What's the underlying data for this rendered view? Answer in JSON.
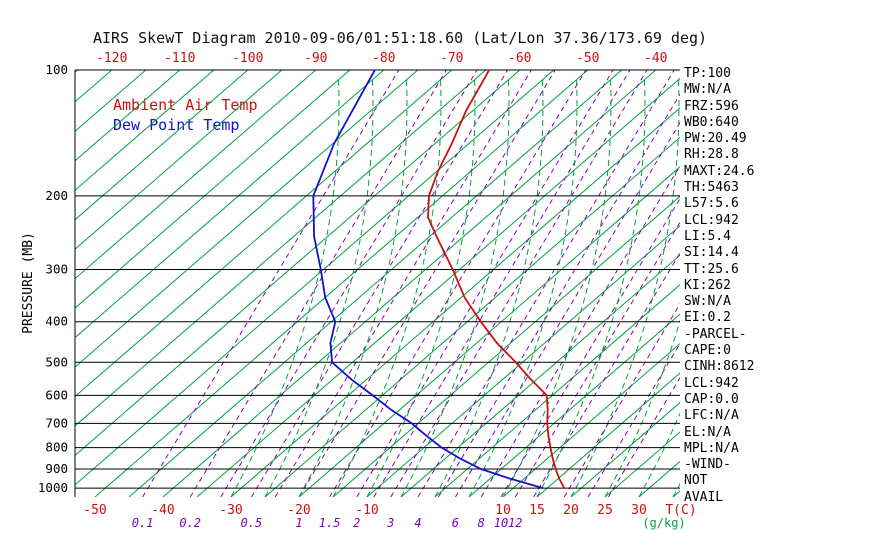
{
  "title": "AIRS SkewT Diagram 2010-09-06/01:51:18.60 (Lat/Lon 37.36/173.69 deg)",
  "legend": [
    {
      "label": "Ambient Air Temp",
      "color": "#cc1111"
    },
    {
      "label": "Dew Point Temp",
      "color": "#1111cc"
    }
  ],
  "axes": {
    "pressure_label": "PRESSURE (MB)",
    "pressure_ticks": [
      100,
      200,
      300,
      400,
      500,
      600,
      700,
      800,
      900,
      1000
    ],
    "top_temp_ticks": [
      -120,
      -110,
      -100,
      -90,
      -80,
      -70,
      -60,
      -50,
      -40
    ],
    "bottom_temp_ticks": [
      -50,
      -40,
      -30,
      -20,
      -10,
      10,
      15,
      20,
      25,
      30
    ],
    "temp_unit": "T(C)",
    "mixing_ratio_ticks": [
      0.1,
      0.2,
      0.5,
      1,
      1.5,
      2,
      3,
      4,
      6,
      8,
      10,
      12
    ],
    "mixing_unit": "(g/kg)"
  },
  "stats": [
    "TP:100",
    "MW:N/A",
    "FRZ:596",
    "WB0:640",
    "PW:20.49",
    "RH:28.8",
    "MAXT:24.6",
    "TH:5463",
    "L57:5.6",
    "LCL:942",
    "LI:5.4",
    "SI:14.4",
    "TT:25.6",
    "KI:262",
    "SW:N/A",
    "EI:0.2",
    "-PARCEL-",
    "CAPE:0",
    "CINH:8612",
    "LCL:942",
    "CAP:0.0",
    "LFC:N/A",
    "EL:N/A",
    "MPL:N/A",
    "-WIND-",
    "NOT",
    "AVAIL"
  ],
  "colors": {
    "temperature": "#cc1111",
    "dew_point": "#1111cc",
    "isotherm": "#00a040",
    "mixing_ratio": "#8000c8",
    "axis": "#000000"
  },
  "chart_data": {
    "type": "line",
    "title": "AIRS SkewT Diagram 2010-09-06/01:51:18.60 (Lat/Lon 37.36/173.69 deg)",
    "xlabel": "T(C)",
    "ylabel": "PRESSURE (MB)",
    "pressure_range": [
      100,
      1050
    ],
    "pressure_scale": "log",
    "surface_temp_range": [
      -50,
      35
    ],
    "skew": true,
    "isotherm_step_c": 5,
    "series": [
      {
        "name": "Ambient Air Temp",
        "color": "#cc1111",
        "points_p_t": [
          [
            1000,
            17.5
          ],
          [
            950,
            15.2
          ],
          [
            900,
            13
          ],
          [
            850,
            10.8
          ],
          [
            800,
            8.6
          ],
          [
            750,
            6.3
          ],
          [
            700,
            4
          ],
          [
            650,
            1.8
          ],
          [
            600,
            -0.8
          ],
          [
            550,
            -5.8
          ],
          [
            500,
            -11
          ],
          [
            450,
            -17
          ],
          [
            400,
            -23
          ],
          [
            350,
            -29.5
          ],
          [
            300,
            -36
          ],
          [
            250,
            -44
          ],
          [
            225,
            -48.5
          ],
          [
            200,
            -52
          ],
          [
            175,
            -54.8
          ],
          [
            150,
            -57.5
          ],
          [
            125,
            -61
          ],
          [
            100,
            -64.5
          ]
        ]
      },
      {
        "name": "Dew Point Temp",
        "color": "#1111cc",
        "points_p_t": [
          [
            1000,
            14.4
          ],
          [
            950,
            8
          ],
          [
            900,
            2
          ],
          [
            850,
            -2.8
          ],
          [
            800,
            -7.4
          ],
          [
            750,
            -11.6
          ],
          [
            700,
            -15.9
          ],
          [
            650,
            -21.2
          ],
          [
            600,
            -26.4
          ],
          [
            550,
            -32.2
          ],
          [
            500,
            -38
          ],
          [
            450,
            -41.5
          ],
          [
            400,
            -44.4
          ],
          [
            350,
            -50
          ],
          [
            300,
            -55.4
          ],
          [
            250,
            -62
          ],
          [
            200,
            -69
          ],
          [
            150,
            -74.8
          ],
          [
            100,
            -81.3
          ]
        ]
      }
    ],
    "mixing_ratio_lines": {
      "values_g_kg": [
        0.1,
        0.2,
        0.3,
        0.5,
        0.7,
        1,
        1.5,
        2,
        2.5,
        3,
        4,
        5,
        6,
        8,
        10,
        12,
        15,
        20,
        25,
        30
      ],
      "t_at_surface_c": [
        -43,
        -36,
        -31.5,
        -27,
        -23.5,
        -20,
        -15.5,
        -11.5,
        -9,
        -6.5,
        -2.5,
        0.5,
        3,
        6.8,
        9.7,
        11.8,
        14.5,
        19,
        22.5,
        25.5
      ]
    }
  }
}
